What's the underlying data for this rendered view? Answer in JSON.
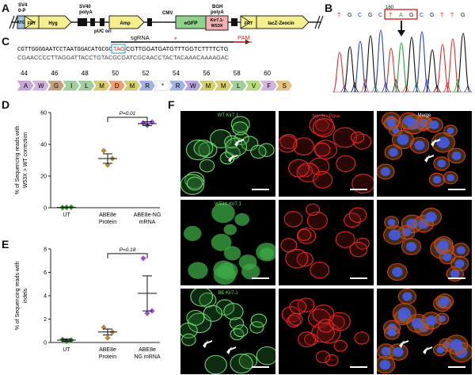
{
  "panels": {
    "a": "A",
    "b": "B",
    "c": "C",
    "d": "D",
    "e": "E",
    "f": "F"
  },
  "construct": {
    "sv4": "SV4",
    "op": "0-P",
    "sv40": "SV40",
    "polya": "polyA",
    "bgh": "BGH",
    "bgh_polya": "polyA",
    "cmv": "CMV",
    "atg": "ATG",
    "frt": "FRT",
    "hyg": "Hyg",
    "amp": "Amp",
    "puc": "pUC ori",
    "egfp": "eGFP",
    "kir": "Kir7.1-\nW53X",
    "frt2": "FRT",
    "lacz": "lacZ-Zeocin"
  },
  "sequencing": {
    "bases": [
      "T",
      "G",
      "C",
      "G",
      "C",
      "T",
      "A",
      "G",
      "C",
      "G",
      "T",
      "T",
      "G"
    ],
    "position": "160",
    "trace_colors": {
      "A": "#2a9e3a",
      "C": "#2b3fbf",
      "G": "#111111",
      "T": "#d93030"
    }
  },
  "sequence": {
    "sgrna": "sgRNA",
    "pam": "PAM",
    "star": "*",
    "line1": "CGTTGGGGAATCCTAATGGACATGCGC",
    "codon": "TAG",
    "line1_rest": "CGTTGGATGATGTTTGGTCTTTTCTG",
    "line2": "CGAACCCCTTAGGATTACCTGTACGCGATCGCAACCTACTACAAACAAAAGAC",
    "aa_numbers": [
      "44",
      "46",
      "48",
      "50",
      "52",
      "54",
      "56",
      "58",
      "60"
    ],
    "aa": [
      "A",
      "W",
      "G",
      "I",
      "L",
      "M",
      "D",
      "M",
      "R",
      "*",
      "R",
      "W",
      "M",
      "M",
      "L",
      "V",
      "F",
      "S"
    ],
    "aa_colors": [
      "#c9a6d4",
      "#d6b3e0",
      "#c7a07a",
      "#9ed29a",
      "#9ed29a",
      "#d9d06a",
      "#f0a070",
      "#d9d06a",
      "#9fb3e8",
      "#ffffff",
      "#9fb3e8",
      "#b8a5e0",
      "#d9d06a",
      "#d9d06a",
      "#9ed29a",
      "#b4e07a",
      "#d6b3e0",
      "#e6c27a"
    ]
  },
  "chart_d": {
    "type": "scatter",
    "ylabel": "% of Sequencing reads with W53X > WT correction",
    "yticks": [
      "0",
      "20",
      "40",
      "60"
    ],
    "ylim": [
      0,
      60
    ],
    "categories": [
      "UT",
      "ABE8e\nProtein",
      "ABE8e-NG\nmRNA"
    ],
    "colors": [
      "#2e8b2e",
      "#b8893a",
      "#9a4fd8"
    ],
    "points": [
      [
        0.2,
        0.3,
        0.1
      ],
      [
        27,
        31,
        36
      ],
      [
        52,
        54,
        53.5
      ]
    ],
    "means": [
      0.2,
      31,
      53
    ],
    "errors": [
      0.1,
      3,
      1.2
    ],
    "pvalue": "P=0.01"
  },
  "chart_e": {
    "type": "scatter",
    "ylabel": "% of Sequencing reads with indels",
    "yticks": [
      "0",
      "2",
      "4",
      "6",
      "8"
    ],
    "ylim": [
      0,
      8
    ],
    "categories": [
      "UT",
      "ABE8e\nProtein",
      "ABE8e\nNG mRNA"
    ],
    "colors": [
      "#2e8b2e",
      "#b8893a",
      "#9a4fd8"
    ],
    "points": [
      [
        0.1,
        0.2,
        0.25
      ],
      [
        0.4,
        0.9,
        1.3
      ],
      [
        2.5,
        2.7,
        7.2
      ]
    ],
    "means": [
      0.2,
      0.9,
      4.2
    ],
    "errors": [
      0.1,
      0.25,
      1.5
    ],
    "pvalue": "P=0.18"
  },
  "micrographs": {
    "rows": [
      {
        "left": "WT Kir7.1"
      },
      {
        "left": "W53X Kir7.1"
      },
      {
        "left": "BE Kir7.1"
      }
    ],
    "middle": "Na⁺/K⁺ Pase",
    "merge": "Merge"
  }
}
